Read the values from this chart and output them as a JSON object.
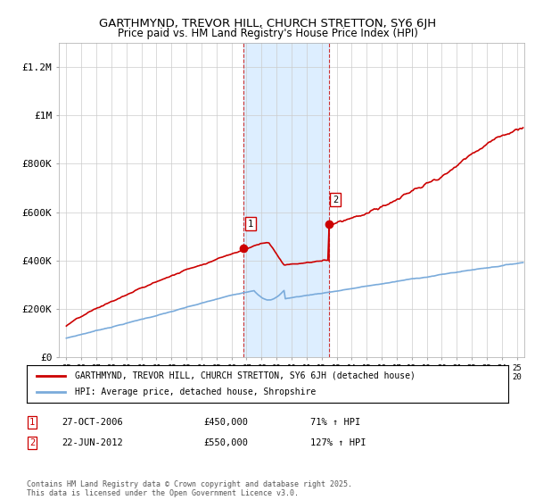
{
  "title": "GARTHMYND, TREVOR HILL, CHURCH STRETTON, SY6 6JH",
  "subtitle": "Price paid vs. HM Land Registry's House Price Index (HPI)",
  "ylabel_ticks": [
    "£0",
    "£200K",
    "£400K",
    "£600K",
    "£800K",
    "£1M",
    "£1.2M"
  ],
  "ytick_values": [
    0,
    200000,
    400000,
    600000,
    800000,
    1000000,
    1200000
  ],
  "ylim": [
    0,
    1300000
  ],
  "xlim_start": 1994.5,
  "xlim_end": 2025.5,
  "sale1_date": 2006.82,
  "sale1_price": 450000,
  "sale1_label": "1",
  "sale1_text": "27-OCT-2006",
  "sale1_amount": "£450,000",
  "sale1_pct": "71% ↑ HPI",
  "sale2_date": 2012.47,
  "sale2_price": 550000,
  "sale2_label": "2",
  "sale2_text": "22-JUN-2012",
  "sale2_amount": "£550,000",
  "sale2_pct": "127% ↑ HPI",
  "legend_line1": "GARTHMYND, TREVOR HILL, CHURCH STRETTON, SY6 6JH (detached house)",
  "legend_line2": "HPI: Average price, detached house, Shropshire",
  "footer": "Contains HM Land Registry data © Crown copyright and database right 2025.\nThis data is licensed under the Open Government Licence v3.0.",
  "house_color": "#cc0000",
  "hpi_color": "#7aabdb",
  "shaded_color": "#ddeeff",
  "background_color": "#ffffff"
}
